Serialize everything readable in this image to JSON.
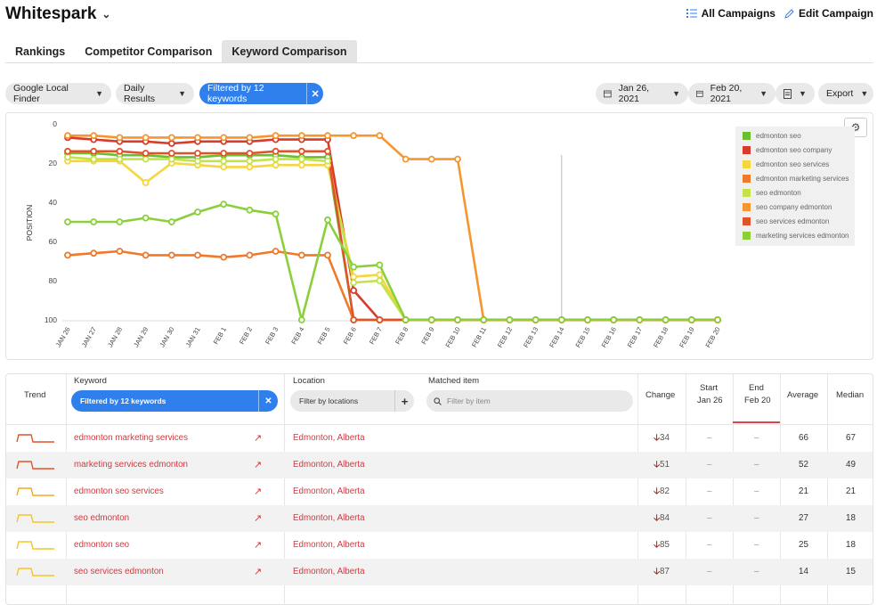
{
  "header": {
    "brand": "Whitespark",
    "all_campaigns": "All Campaigns",
    "edit_campaign": "Edit Campaign"
  },
  "tabs": [
    {
      "label": "Rankings",
      "active": false
    },
    {
      "label": "Competitor Comparison",
      "active": false
    },
    {
      "label": "Keyword Comparison",
      "active": true
    }
  ],
  "filters": {
    "engine": "Google Local Finder",
    "frequency": "Daily Results",
    "keyword_filter": "Filtered by 12 keywords",
    "start_date": "Jan 26, 2021",
    "end_date": "Feb 20, 2021",
    "export": "Export"
  },
  "chart_data": {
    "type": "line",
    "ylabel": "POSITION",
    "ylim": [
      0,
      100
    ],
    "yticks": [
      "0",
      "20",
      "40",
      "60",
      "80",
      "100"
    ],
    "y_inverted": true,
    "categories": [
      "JAN 26",
      "JAN 27",
      "JAN 28",
      "JAN 29",
      "JAN 30",
      "JAN 31",
      "FEB 1",
      "FEB 2",
      "FEB 3",
      "FEB 4",
      "FEB 5",
      "FEB 6",
      "FEB 7",
      "FEB 8",
      "FEB 9",
      "FEB 10",
      "FEB 11",
      "FEB 12",
      "FEB 13",
      "FEB 14",
      "FEB 15",
      "FEB 16",
      "FEB 17",
      "FEB 18",
      "FEB 19",
      "FEB 20"
    ],
    "series": [
      {
        "name": "edmonton seo",
        "color": "#6abf2e",
        "values": [
          15,
          15,
          16,
          16,
          17,
          17,
          16,
          16,
          16,
          17,
          17,
          100,
          100,
          100,
          100,
          100,
          100,
          100,
          100,
          100,
          100,
          100,
          100,
          100,
          100,
          100
        ]
      },
      {
        "name": "edmonton seo company",
        "color": "#d93b2a",
        "values": [
          7,
          8,
          9,
          9,
          10,
          9,
          9,
          9,
          8,
          8,
          8,
          85,
          100,
          100,
          100,
          100,
          100,
          100,
          100,
          100,
          100,
          100,
          100,
          100,
          100,
          100
        ]
      },
      {
        "name": "edmonton seo services",
        "color": "#f5d63d",
        "values": [
          19,
          19,
          19,
          30,
          20,
          21,
          22,
          22,
          21,
          21,
          21,
          78,
          77,
          100,
          100,
          100,
          100,
          100,
          100,
          100,
          100,
          100,
          100,
          100,
          100,
          100
        ]
      },
      {
        "name": "edmonton marketing services",
        "color": "#ee7a2a",
        "values": [
          67,
          66,
          65,
          67,
          67,
          67,
          68,
          67,
          65,
          67,
          67,
          100,
          100,
          100,
          100,
          100,
          100,
          100,
          100,
          100,
          100,
          100,
          100,
          100,
          100,
          100
        ]
      },
      {
        "name": "seo edmonton",
        "color": "#c3e24b",
        "values": [
          17,
          18,
          18,
          18,
          18,
          19,
          19,
          19,
          18,
          18,
          19,
          81,
          80,
          100,
          100,
          100,
          100,
          100,
          100,
          100,
          100,
          100,
          100,
          100,
          100,
          100
        ]
      },
      {
        "name": "seo company edmonton",
        "color": "#f5962f",
        "values": [
          6,
          6,
          7,
          7,
          7,
          7,
          7,
          7,
          6,
          6,
          6,
          6,
          6,
          18,
          18,
          18,
          100,
          100,
          100,
          100,
          100,
          100,
          100,
          100,
          100,
          100
        ]
      },
      {
        "name": "seo services edmonton",
        "color": "#e0532a",
        "values": [
          14,
          14,
          14,
          15,
          15,
          15,
          15,
          15,
          14,
          14,
          14,
          100,
          100,
          100,
          100,
          100,
          100,
          100,
          100,
          100,
          100,
          100,
          100,
          100,
          100,
          100
        ]
      },
      {
        "name": "marketing services edmonton",
        "color": "#8bcf3a",
        "values": [
          50,
          50,
          50,
          48,
          50,
          45,
          41,
          44,
          46,
          100,
          49,
          73,
          72,
          100,
          100,
          100,
          100,
          100,
          100,
          100,
          100,
          100,
          100,
          100,
          100,
          100
        ]
      }
    ]
  },
  "table": {
    "headers": {
      "trend": "Trend",
      "keyword": "Keyword",
      "location": "Location",
      "matched": "Matched item",
      "change": "Change",
      "start": "Start",
      "start_date": "Jan 26",
      "end": "End",
      "end_date": "Feb 20",
      "average": "Average",
      "median": "Median"
    },
    "keyword_filter": "Filtered by 12 keywords",
    "location_placeholder": "Filter by locations",
    "item_placeholder": "Filter by item",
    "rows": [
      {
        "keyword": "edmonton marketing services",
        "location": "Edmonton, Alberta",
        "change": "34",
        "start": "–",
        "end": "–",
        "average": "66",
        "median": "67",
        "trend_color": "#e0532a"
      },
      {
        "keyword": "marketing services edmonton",
        "location": "Edmonton, Alberta",
        "change": "51",
        "start": "–",
        "end": "–",
        "average": "52",
        "median": "49",
        "trend_color": "#e0532a"
      },
      {
        "keyword": "edmonton seo services",
        "location": "Edmonton, Alberta",
        "change": "82",
        "start": "–",
        "end": "–",
        "average": "21",
        "median": "21",
        "trend_color": "#f5a623"
      },
      {
        "keyword": "seo edmonton",
        "location": "Edmonton, Alberta",
        "change": "84",
        "start": "–",
        "end": "–",
        "average": "27",
        "median": "18",
        "trend_color": "#f5c623"
      },
      {
        "keyword": "edmonton seo",
        "location": "Edmonton, Alberta",
        "change": "85",
        "start": "–",
        "end": "–",
        "average": "25",
        "median": "18",
        "trend_color": "#f5c623"
      },
      {
        "keyword": "seo services edmonton",
        "location": "Edmonton, Alberta",
        "change": "87",
        "start": "–",
        "end": "–",
        "average": "14",
        "median": "15",
        "trend_color": "#f5c623"
      }
    ]
  }
}
